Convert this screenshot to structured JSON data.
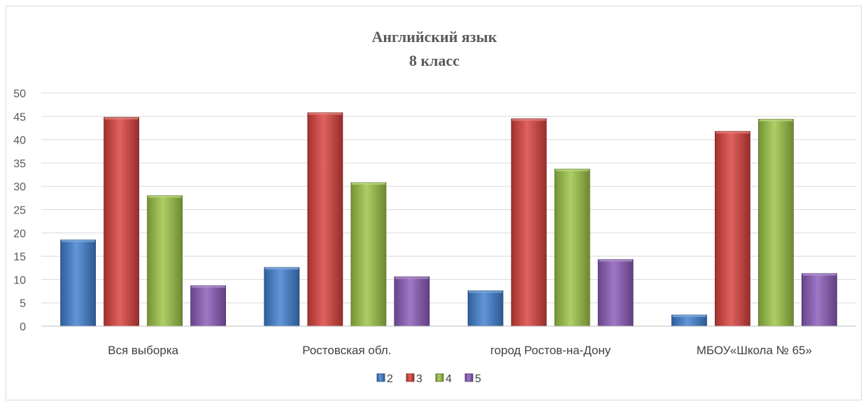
{
  "chart_data": {
    "type": "bar",
    "title": "Английский язык",
    "subtitle": "8 класс",
    "categories": [
      "Вся выборка",
      "Ростовская обл.",
      "город Ростов-на-Дону",
      "МБОУ«Школа № 65»"
    ],
    "series": [
      {
        "name": "2",
        "color": "#3f7fd0",
        "values": [
          18.5,
          12.6,
          7.6,
          2.4
        ]
      },
      {
        "name": "3",
        "color": "#d9403c",
        "values": [
          44.8,
          45.8,
          44.5,
          41.8
        ]
      },
      {
        "name": "4",
        "color": "#9bc444",
        "values": [
          28.0,
          30.8,
          33.7,
          44.4
        ]
      },
      {
        "name": "5",
        "color": "#8a5ab8",
        "values": [
          8.7,
          10.6,
          14.3,
          11.3
        ]
      }
    ],
    "ylim": [
      0,
      50
    ],
    "yticks": [
      0,
      5,
      10,
      15,
      20,
      25,
      30,
      35,
      40,
      45,
      50
    ],
    "grid": true,
    "legend_position": "bottom"
  }
}
